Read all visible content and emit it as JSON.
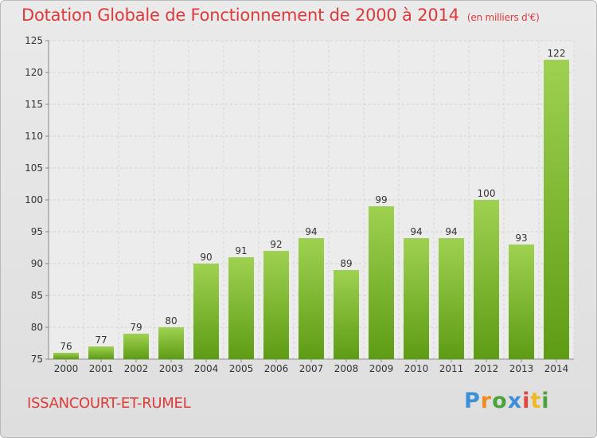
{
  "header": {
    "title": "Dotation Globale de Fonctionnement de 2000 à 2014",
    "unit": "(en milliers d'€)"
  },
  "footer": {
    "commune": "ISSANCOURT-ET-RUMEL",
    "logo": "Proxiti"
  },
  "colors": {
    "title": "#dd3a3a",
    "bar_top": "#9fd150",
    "bar_bottom": "#5e9c14"
  },
  "chart_data": {
    "type": "bar",
    "title": "Dotation Globale de Fonctionnement de 2000 à 2014",
    "xlabel": "",
    "ylabel": "",
    "ylim": [
      75,
      125
    ],
    "yticks": [
      75,
      80,
      85,
      90,
      95,
      100,
      105,
      110,
      115,
      120,
      125
    ],
    "grid": true,
    "categories": [
      "2000",
      "2001",
      "2002",
      "2003",
      "2004",
      "2005",
      "2006",
      "2007",
      "2008",
      "2009",
      "2010",
      "2011",
      "2012",
      "2013",
      "2014"
    ],
    "values": [
      76,
      77,
      79,
      80,
      90,
      91,
      92,
      94,
      89,
      99,
      94,
      94,
      100,
      93,
      122
    ]
  }
}
